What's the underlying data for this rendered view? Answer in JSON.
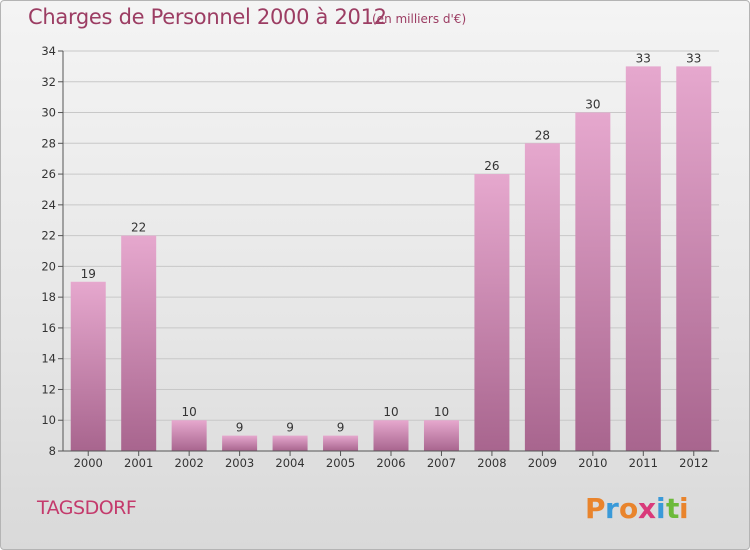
{
  "header": {
    "title": "Charges de Personnel 2000 à 2012",
    "unit": "(en milliers d'€)"
  },
  "footer": {
    "commune": "TAGSDORF",
    "logo_text": "Proxiti"
  },
  "colors": {
    "bar_top": "#e6a8ce",
    "bar_bottom": "#a8658e",
    "title": "#9c3d63",
    "commune": "#c43a6c"
  },
  "chart_data": {
    "type": "bar",
    "title": "Charges de Personnel 2000 à 2012",
    "subtitle": "(en milliers d'€)",
    "categories": [
      "2000",
      "2001",
      "2002",
      "2003",
      "2004",
      "2005",
      "2006",
      "2007",
      "2008",
      "2009",
      "2010",
      "2011",
      "2012"
    ],
    "values": [
      19,
      22,
      10,
      9,
      9,
      9,
      10,
      10,
      26,
      28,
      30,
      33,
      33
    ],
    "ylim": [
      8,
      34
    ],
    "yticks": [
      8,
      10,
      12,
      14,
      16,
      18,
      20,
      22,
      24,
      26,
      28,
      30,
      32,
      34
    ],
    "grid": true,
    "data_labels": true
  }
}
